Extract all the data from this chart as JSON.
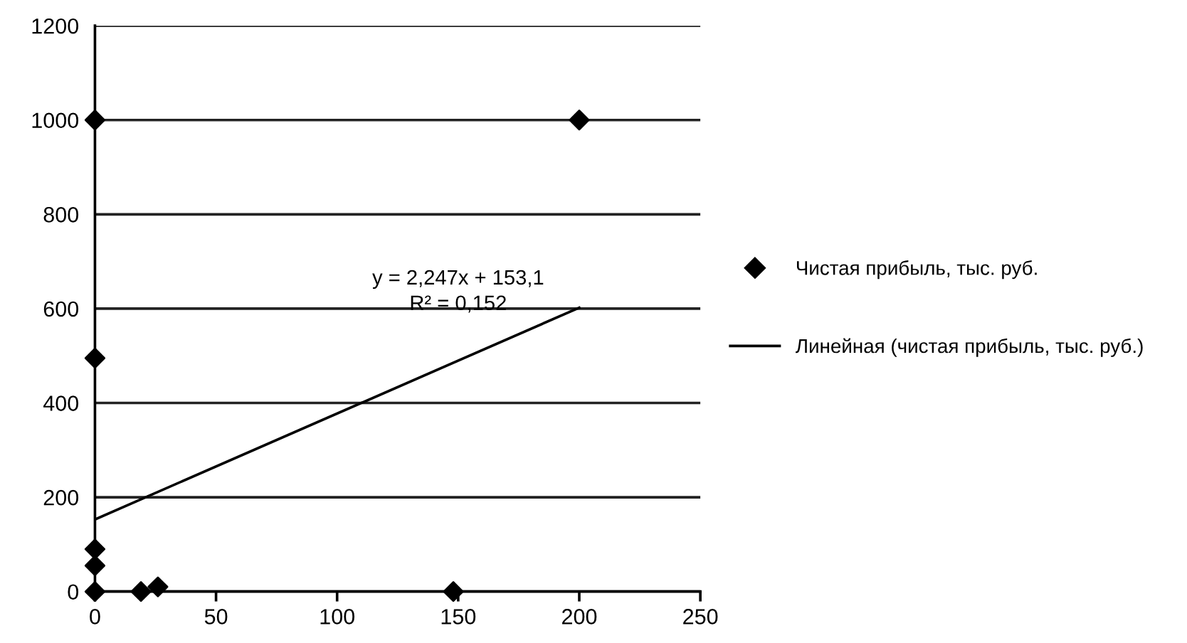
{
  "chart_data": {
    "type": "scatter",
    "xlim": [
      0,
      250
    ],
    "xticks": [
      0,
      50,
      100,
      150,
      200,
      250
    ],
    "ylim": [
      0,
      1200
    ],
    "yticks": [
      0,
      200,
      400,
      600,
      800,
      1000,
      1200
    ],
    "grid": "y",
    "legend": "right",
    "series": [
      {
        "name": "Чистая прибыль, тыс. руб.",
        "marker": "diamond",
        "color": "#000000",
        "x": [
          0,
          200,
          0,
          0,
          0,
          0,
          19,
          26,
          148
        ],
        "values": [
          1000,
          1000,
          495,
          90,
          55,
          0,
          0,
          10,
          0
        ]
      },
      {
        "name": "Линейная (чистая прибыль, тыс. руб.)",
        "type": "line",
        "marker": "none",
        "color": "#000000",
        "x": [
          0,
          200
        ],
        "values": [
          153,
          602
        ]
      }
    ],
    "annotations": [
      "y = 2,247x + 153,1",
      "R² = 0,152"
    ]
  }
}
